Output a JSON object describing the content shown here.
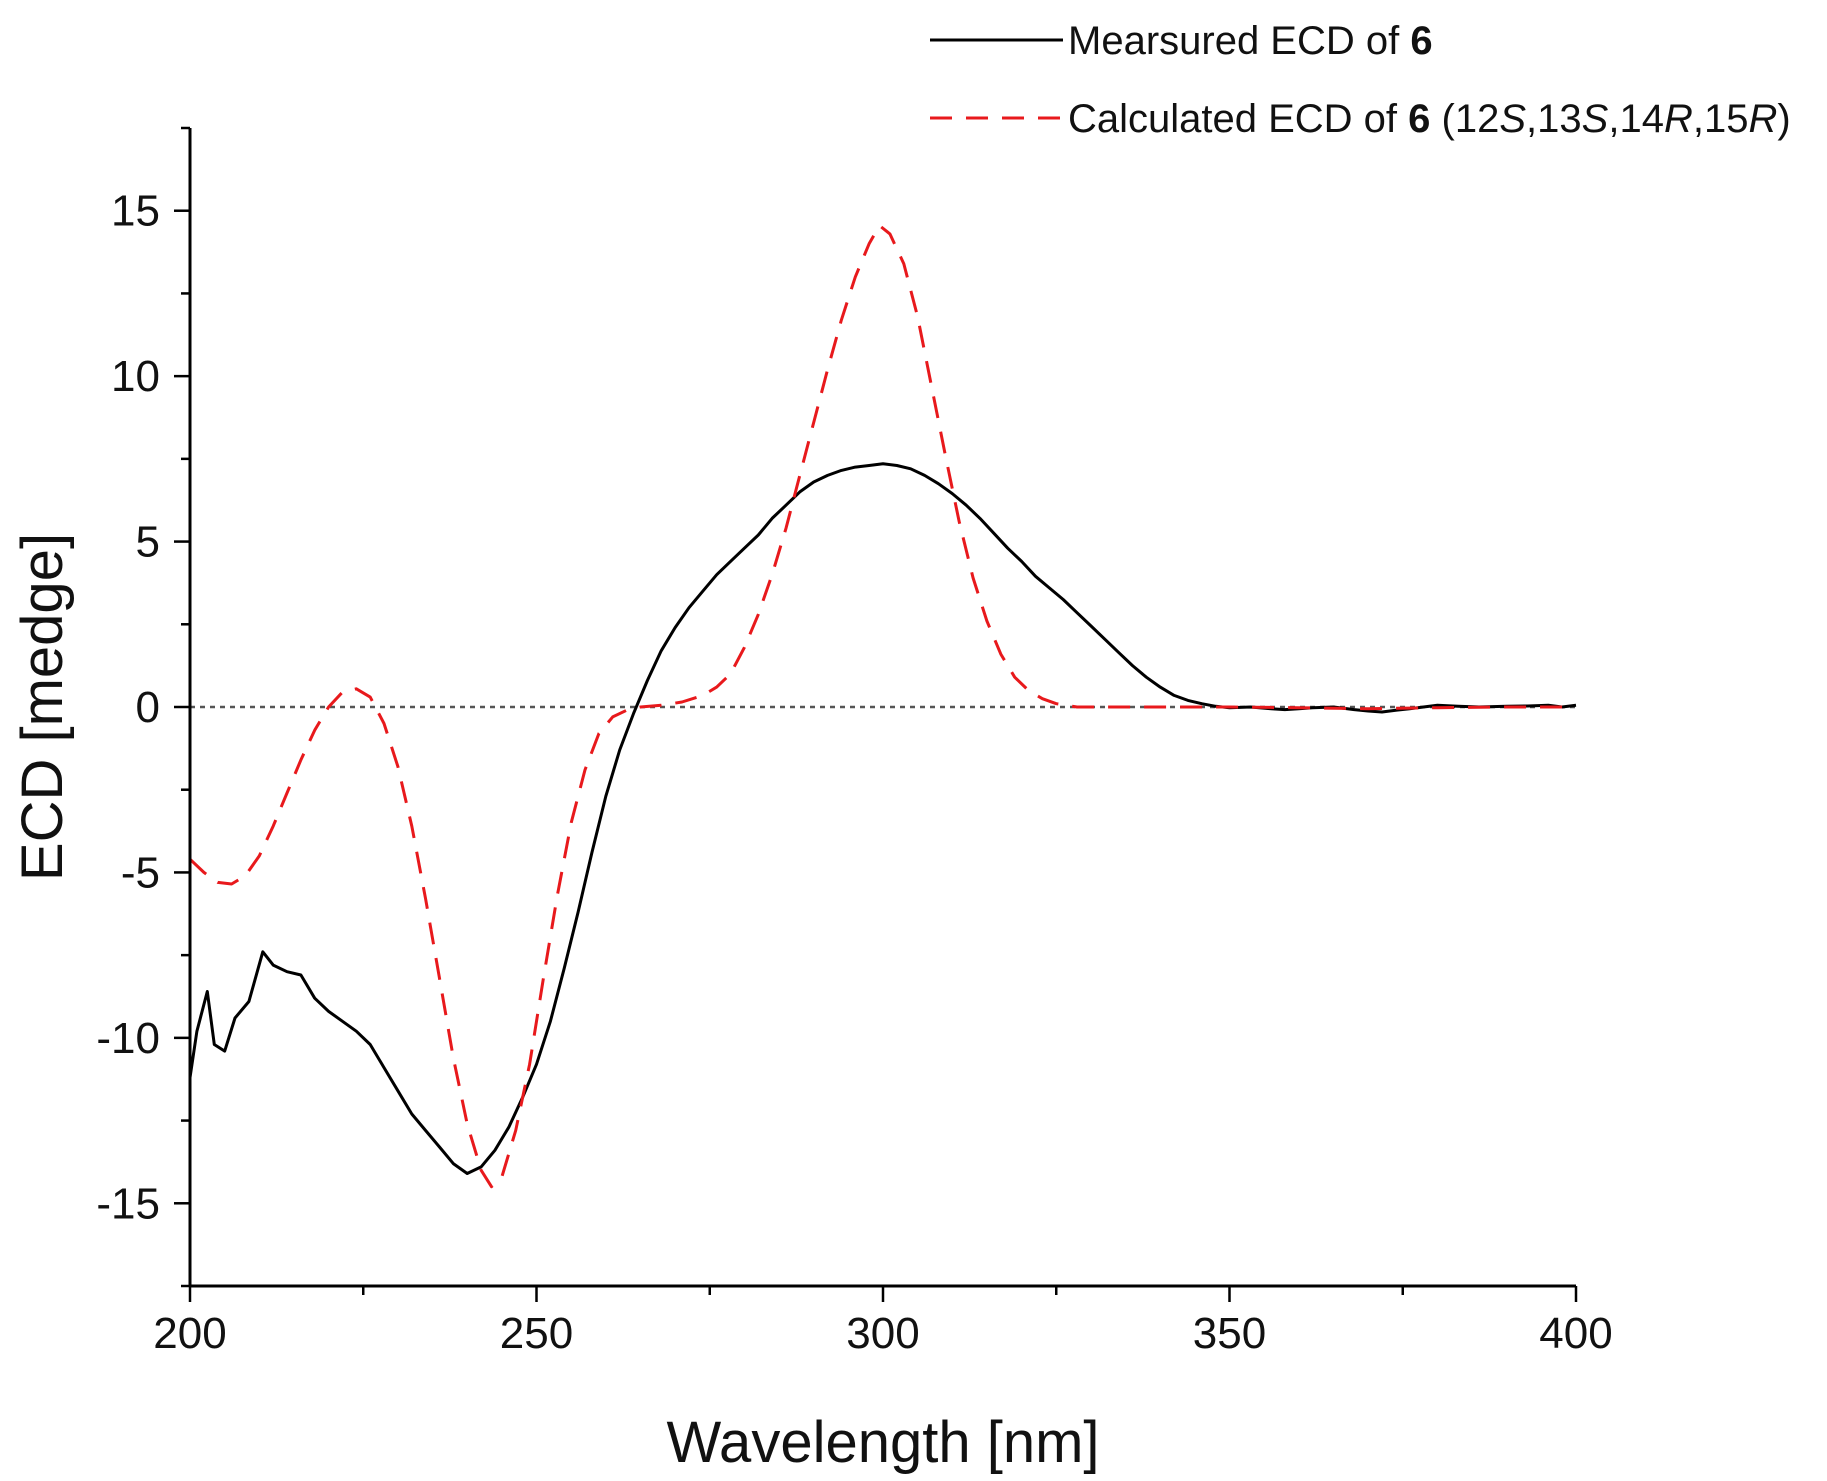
{
  "chart_data": {
    "type": "line",
    "title": "",
    "xlabel": "Wavelength [nm]",
    "ylabel": "ECD [medge]",
    "xlim": [
      200,
      400
    ],
    "ylim": [
      -17.5,
      17.5
    ],
    "xticks": [
      200,
      250,
      300,
      350,
      400
    ],
    "yticks": [
      -15,
      -10,
      -5,
      0,
      5,
      10,
      15
    ],
    "xtick_labels": [
      "200",
      "250",
      "300",
      "350",
      "400"
    ],
    "ytick_labels": [
      "-15",
      "-10",
      "-5",
      "0",
      "5",
      "10",
      "15"
    ],
    "zero_line": true,
    "grid": false,
    "legend_position": "top-right",
    "legend": [
      {
        "series": 0,
        "parts": [
          {
            "text": "Mearsured ECD of "
          },
          {
            "text": "6",
            "bold": true
          }
        ]
      },
      {
        "series": 1,
        "parts": [
          {
            "text": "Calculated ECD of "
          },
          {
            "text": "6",
            "bold": true
          },
          {
            "text": " (12"
          },
          {
            "text": "S",
            "italic": true
          },
          {
            "text": ",13"
          },
          {
            "text": "S",
            "italic": true
          },
          {
            "text": ",14"
          },
          {
            "text": "R",
            "italic": true
          },
          {
            "text": ",15"
          },
          {
            "text": "R",
            "italic": true
          },
          {
            "text": ")"
          }
        ]
      }
    ],
    "series": [
      {
        "name": "Mearsured ECD of 6",
        "color": "#000000",
        "dash": "solid",
        "points": [
          [
            200,
            -11.2
          ],
          [
            201,
            -9.8
          ],
          [
            202.5,
            -8.6
          ],
          [
            203.5,
            -10.2
          ],
          [
            205,
            -10.4
          ],
          [
            206.5,
            -9.4
          ],
          [
            208.5,
            -8.9
          ],
          [
            210.5,
            -7.4
          ],
          [
            212,
            -7.8
          ],
          [
            214,
            -8.0
          ],
          [
            216,
            -8.1
          ],
          [
            218,
            -8.8
          ],
          [
            220,
            -9.2
          ],
          [
            222,
            -9.5
          ],
          [
            224,
            -9.8
          ],
          [
            226,
            -10.2
          ],
          [
            228,
            -10.9
          ],
          [
            230,
            -11.6
          ],
          [
            232,
            -12.3
          ],
          [
            234,
            -12.8
          ],
          [
            236,
            -13.3
          ],
          [
            238,
            -13.8
          ],
          [
            240,
            -14.1
          ],
          [
            242,
            -13.9
          ],
          [
            244,
            -13.4
          ],
          [
            246,
            -12.7
          ],
          [
            248,
            -11.8
          ],
          [
            250,
            -10.8
          ],
          [
            252,
            -9.5
          ],
          [
            254,
            -7.9
          ],
          [
            256,
            -6.2
          ],
          [
            258,
            -4.4
          ],
          [
            260,
            -2.7
          ],
          [
            262,
            -1.3
          ],
          [
            264,
            -0.2
          ],
          [
            266,
            0.8
          ],
          [
            268,
            1.7
          ],
          [
            270,
            2.4
          ],
          [
            272,
            3.0
          ],
          [
            274,
            3.5
          ],
          [
            276,
            4.0
          ],
          [
            278,
            4.4
          ],
          [
            280,
            4.8
          ],
          [
            282,
            5.2
          ],
          [
            284,
            5.7
          ],
          [
            286,
            6.1
          ],
          [
            288,
            6.5
          ],
          [
            290,
            6.8
          ],
          [
            292,
            7.0
          ],
          [
            294,
            7.15
          ],
          [
            296,
            7.25
          ],
          [
            298,
            7.3
          ],
          [
            300,
            7.35
          ],
          [
            302,
            7.3
          ],
          [
            304,
            7.2
          ],
          [
            306,
            7.0
          ],
          [
            308,
            6.75
          ],
          [
            310,
            6.45
          ],
          [
            312,
            6.1
          ],
          [
            314,
            5.7
          ],
          [
            316,
            5.25
          ],
          [
            318,
            4.8
          ],
          [
            320,
            4.4
          ],
          [
            322,
            3.95
          ],
          [
            324,
            3.6
          ],
          [
            326,
            3.25
          ],
          [
            328,
            2.85
          ],
          [
            330,
            2.45
          ],
          [
            332,
            2.05
          ],
          [
            334,
            1.65
          ],
          [
            336,
            1.25
          ],
          [
            338,
            0.9
          ],
          [
            340,
            0.6
          ],
          [
            342,
            0.35
          ],
          [
            344,
            0.2
          ],
          [
            346,
            0.1
          ],
          [
            348,
            0.02
          ],
          [
            350,
            -0.02
          ],
          [
            353,
            0.0
          ],
          [
            356,
            -0.05
          ],
          [
            358,
            -0.08
          ],
          [
            360,
            -0.05
          ],
          [
            362,
            -0.02
          ],
          [
            365,
            0.0
          ],
          [
            368,
            -0.08
          ],
          [
            370,
            -0.12
          ],
          [
            372,
            -0.15
          ],
          [
            374,
            -0.1
          ],
          [
            376,
            -0.05
          ],
          [
            378,
            0.0
          ],
          [
            380,
            0.05
          ],
          [
            383,
            0.02
          ],
          [
            386,
            0.0
          ],
          [
            390,
            0.02
          ],
          [
            393,
            0.03
          ],
          [
            396,
            0.05
          ],
          [
            398,
            0.0
          ],
          [
            400,
            0.05
          ]
        ]
      },
      {
        "name": "Calculated ECD of 6 (12S,13S,14R,15R)",
        "color": "#e8191c",
        "dash": "dashed",
        "points": [
          [
            200,
            -4.6
          ],
          [
            202,
            -5.0
          ],
          [
            204,
            -5.3
          ],
          [
            206,
            -5.35
          ],
          [
            208,
            -5.1
          ],
          [
            210,
            -4.5
          ],
          [
            212,
            -3.6
          ],
          [
            214,
            -2.6
          ],
          [
            216,
            -1.6
          ],
          [
            218,
            -0.7
          ],
          [
            220,
            0.0
          ],
          [
            222,
            0.45
          ],
          [
            224,
            0.55
          ],
          [
            226,
            0.3
          ],
          [
            228,
            -0.5
          ],
          [
            230,
            -1.8
          ],
          [
            232,
            -3.6
          ],
          [
            234,
            -5.8
          ],
          [
            236,
            -8.2
          ],
          [
            238,
            -10.6
          ],
          [
            240,
            -12.6
          ],
          [
            242,
            -14.0
          ],
          [
            243.5,
            -14.5
          ],
          [
            245,
            -14.2
          ],
          [
            247,
            -12.8
          ],
          [
            249,
            -10.8
          ],
          [
            251,
            -8.2
          ],
          [
            253,
            -5.7
          ],
          [
            255,
            -3.5
          ],
          [
            257,
            -1.9
          ],
          [
            259,
            -0.8
          ],
          [
            261,
            -0.3
          ],
          [
            263,
            -0.1
          ],
          [
            265,
            0.0
          ],
          [
            268,
            0.05
          ],
          [
            271,
            0.15
          ],
          [
            274,
            0.35
          ],
          [
            276,
            0.6
          ],
          [
            278,
            1.0
          ],
          [
            280,
            1.8
          ],
          [
            282,
            2.8
          ],
          [
            284,
            4.0
          ],
          [
            286,
            5.4
          ],
          [
            288,
            7.0
          ],
          [
            290,
            8.6
          ],
          [
            292,
            10.2
          ],
          [
            294,
            11.7
          ],
          [
            296,
            13.0
          ],
          [
            298,
            14.0
          ],
          [
            299.5,
            14.55
          ],
          [
            301,
            14.3
          ],
          [
            303,
            13.4
          ],
          [
            305,
            11.8
          ],
          [
            307,
            9.7
          ],
          [
            309,
            7.6
          ],
          [
            311,
            5.6
          ],
          [
            313,
            3.9
          ],
          [
            315,
            2.6
          ],
          [
            317,
            1.6
          ],
          [
            319,
            0.9
          ],
          [
            321,
            0.5
          ],
          [
            323,
            0.25
          ],
          [
            325,
            0.1
          ],
          [
            328,
            0.0
          ],
          [
            332,
            0.0
          ],
          [
            350,
            0.0
          ],
          [
            360,
            -0.02
          ],
          [
            370,
            -0.05
          ],
          [
            380,
            -0.02
          ],
          [
            390,
            0.0
          ],
          [
            400,
            0.0
          ]
        ]
      }
    ]
  }
}
